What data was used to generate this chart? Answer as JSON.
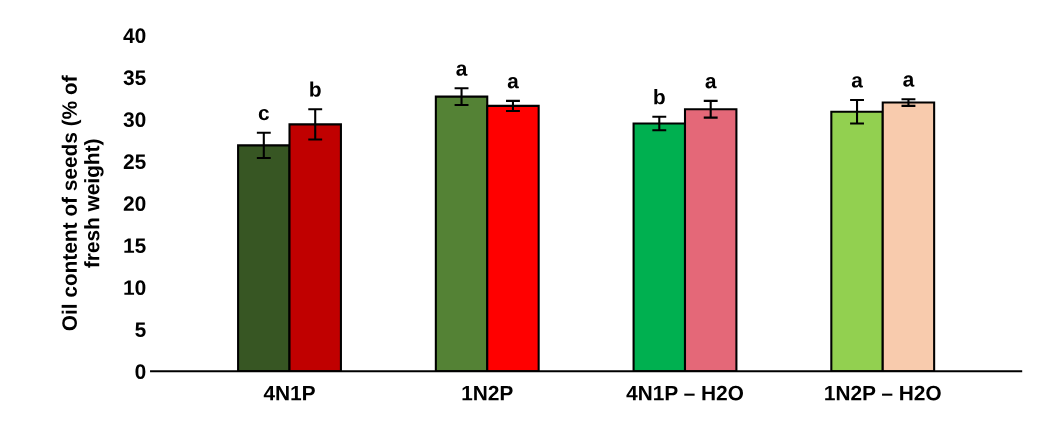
{
  "chart_data": {
    "type": "bar",
    "ylabel": "Oil content of seeds (% of\nfresh weight)",
    "categories": [
      "4N1P",
      "1N2P",
      "4N1P – H2O",
      "1N2P – H2O"
    ],
    "series": [
      {
        "colors": [
          "#375623",
          "#548235",
          "#00b050",
          "#92d050"
        ],
        "values": [
          26.9,
          32.7,
          29.5,
          30.9
        ],
        "errors": [
          1.5,
          1.0,
          0.8,
          1.4
        ],
        "value_labels": [
          "c",
          "a",
          "b",
          "a"
        ]
      },
      {
        "colors": [
          "#c00000",
          "#ff0000",
          "#e46878",
          "#f8cbad"
        ],
        "values": [
          29.4,
          31.6,
          31.2,
          32.0
        ],
        "errors": [
          1.8,
          0.6,
          1.0,
          0.4
        ],
        "value_labels": [
          "b",
          "a",
          "a",
          "a"
        ]
      }
    ],
    "ylim": [
      0,
      40
    ],
    "yticks": [
      0,
      5,
      10,
      15,
      20,
      25,
      30,
      35,
      40
    ],
    "grid": false,
    "legend": false
  }
}
